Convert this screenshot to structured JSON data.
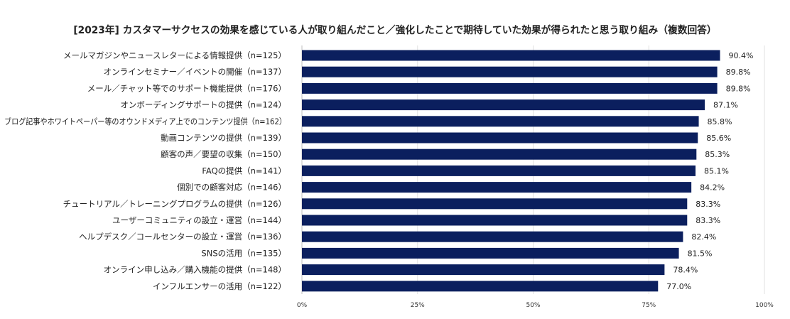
{
  "chart_data": {
    "type": "bar",
    "orientation": "horizontal",
    "title": "[2023年] カスタマーサクセスの効果を感じている人が取り組んだこと／強化したことで期待していた効果が得られたと思う取り組み（複数回答）",
    "categories": [
      "メールマガジンやニュースレターによる情報提供（n=125）",
      "オンラインセミナー／イベントの開催（n=137）",
      "メール／チャット等でのサポート機能提供（n=176）",
      "オンボーディングサポートの提供（n=124）",
      "ブログ記事やホワイトペーパー等のオウンドメディア上でのコンテンツ提供（n=162）",
      "動画コンテンツの提供（n=139）",
      "顧客の声／要望の収集（n=150）",
      "FAQの提供（n=141）",
      "個別での顧客対応（n=146）",
      "チュートリアル／トレーニングプログラムの提供（n=126）",
      "ユーザーコミュニティの設立・運営（n=144）",
      "ヘルプデスク／コールセンターの設立・運営（n=136）",
      "SNSの活用（n=135）",
      "オンライン申し込み／購入機能の提供（n=148）",
      "インフルエンサーの活用（n=122）"
    ],
    "values": [
      90.4,
      89.8,
      89.8,
      87.1,
      85.8,
      85.6,
      85.3,
      85.1,
      84.2,
      83.3,
      83.3,
      82.4,
      81.5,
      78.4,
      77.0
    ],
    "value_labels": [
      "90.4%",
      "89.8%",
      "89.8%",
      "87.1%",
      "85.8%",
      "85.6%",
      "85.3%",
      "85.1%",
      "84.2%",
      "83.3%",
      "83.3%",
      "82.4%",
      "81.5%",
      "78.4%",
      "77.0%"
    ],
    "xlim": [
      0,
      100
    ],
    "ticks": [
      0,
      25,
      50,
      75,
      100
    ],
    "tick_labels": [
      "0%",
      "25%",
      "50%",
      "75%",
      "100%"
    ],
    "bar_color": "#0b1f5e",
    "grid": true,
    "legend": "none"
  }
}
